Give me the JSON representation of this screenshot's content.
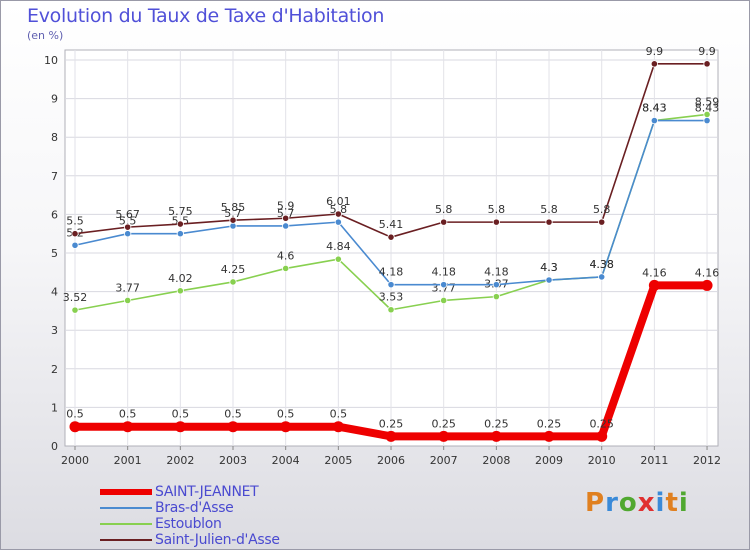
{
  "header": {
    "title": "Evolution du Taux de Taxe d'Habitation",
    "subtitle": "(en %)"
  },
  "logo": {
    "text": "Proxiti"
  },
  "chart_data": {
    "type": "line",
    "title": "Evolution du Taux de Taxe d'Habitation",
    "ylabel": "(en %)",
    "xlabel": "",
    "ylim": [
      0,
      10
    ],
    "yticks": [
      0,
      1,
      2,
      3,
      4,
      5,
      6,
      7,
      8,
      9,
      10
    ],
    "categories": [
      "2000",
      "2001",
      "2002",
      "2003",
      "2004",
      "2005",
      "2006",
      "2007",
      "2008",
      "2009",
      "2010",
      "2011",
      "2012"
    ],
    "legend_position": "bottom-left",
    "series": [
      {
        "name": "SAINT-JEANNET",
        "color": "#ee0000",
        "values": [
          0.5,
          0.5,
          0.5,
          0.5,
          0.5,
          0.5,
          0.25,
          0.25,
          0.25,
          0.25,
          0.25,
          4.16,
          4.16
        ],
        "labels": [
          "0.5",
          "0.5",
          "0.5",
          "0.5",
          "0.5",
          "0.5",
          "0.25",
          "0.25",
          "0.25",
          "0.25",
          "0.25",
          "4.16",
          "4.16"
        ]
      },
      {
        "name": "Bras-d'Asse",
        "color": "#4a8ad0",
        "values": [
          5.2,
          5.5,
          5.5,
          5.7,
          5.7,
          5.8,
          4.18,
          4.18,
          4.18,
          4.3,
          4.38,
          8.43,
          8.43
        ],
        "labels": [
          "5.2",
          "5.5",
          "5.5",
          "5.7",
          "5.7",
          "5.8",
          "4.18",
          "4.18",
          "4.18",
          "4.3",
          "4.38",
          "8.43",
          "8.43"
        ]
      },
      {
        "name": "Estoublon",
        "color": "#88d050",
        "values": [
          3.52,
          3.77,
          4.02,
          4.25,
          4.6,
          4.84,
          3.53,
          3.77,
          3.87,
          4.3,
          4.38,
          8.43,
          8.59
        ],
        "labels": [
          "3.52",
          "3.77",
          "4.02",
          "4.25",
          "4.6",
          "4.84",
          "3.53",
          "3.77",
          "3.87",
          "4.3",
          "4.38",
          "8.43",
          "8.59"
        ]
      },
      {
        "name": "Saint-Julien-d'Asse",
        "color": "#6a1f22",
        "values": [
          5.5,
          5.67,
          5.75,
          5.85,
          5.9,
          6.01,
          5.41,
          5.8,
          5.8,
          5.8,
          5.8,
          9.9,
          9.9
        ],
        "labels": [
          "5.5",
          "5.67",
          "5.75",
          "5.85",
          "5.9",
          "6.01",
          "5.41",
          "5.8",
          "5.8",
          "5.8",
          "5.8",
          "9.9",
          "9.9"
        ]
      }
    ]
  }
}
